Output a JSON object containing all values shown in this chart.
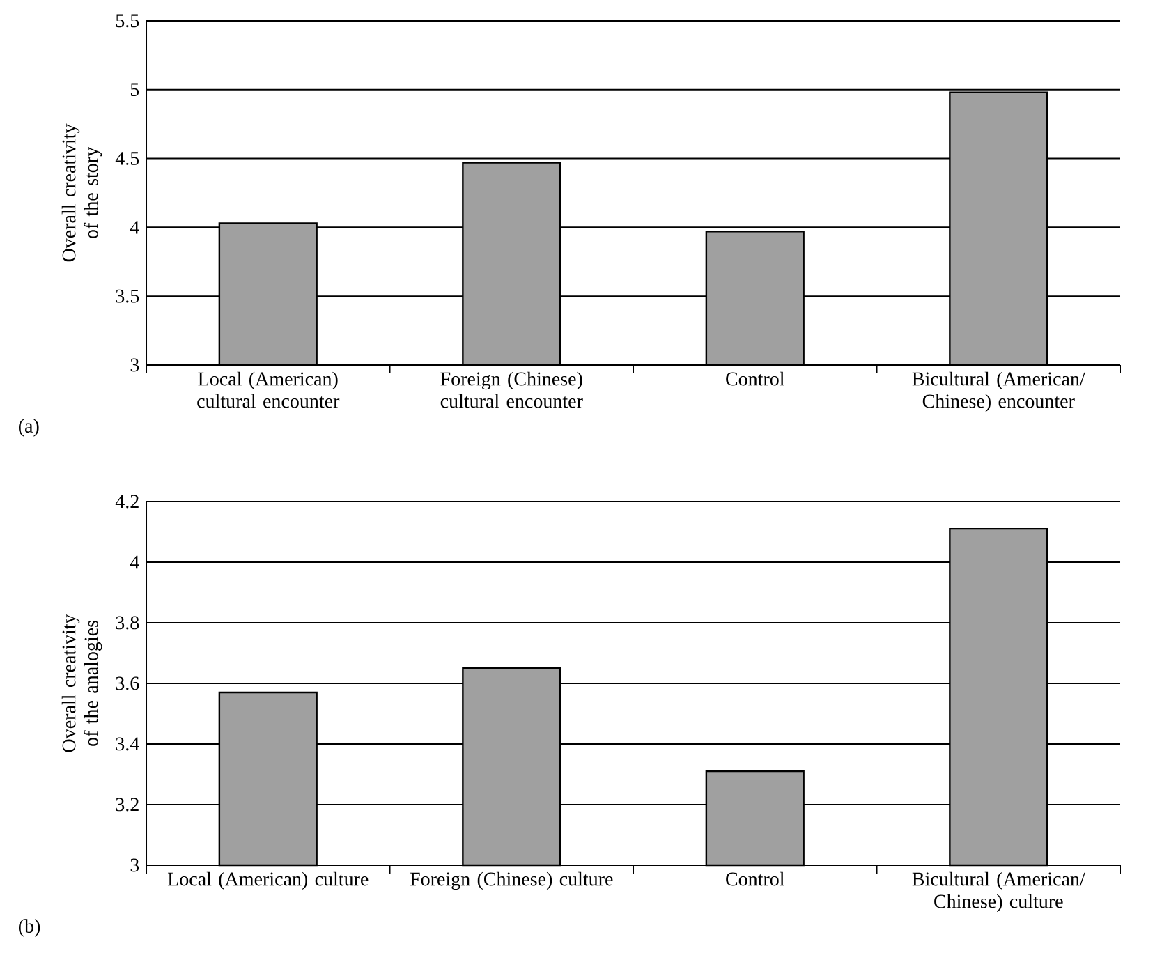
{
  "chart_data": [
    {
      "type": "bar",
      "ylabel": "Overall creativity of the story",
      "categories": [
        "Local (American) cultural encounter",
        "Foreign (Chinese) cultural encounter",
        "Control",
        "Bicultural (American/ Chinese) encounter"
      ],
      "values": [
        4.03,
        4.47,
        3.97,
        4.98
      ],
      "color": "#a0a0a0",
      "ylim": [
        3,
        5.5
      ],
      "yticks": [
        3,
        3.5,
        4,
        4.5,
        5,
        5.5
      ],
      "grid": "y",
      "annotations": [
        "(a)"
      ]
    },
    {
      "type": "bar",
      "ylabel": "Overall creativity of the analogies",
      "categories": [
        "Local (American) culture",
        "Foreign (Chinese) culture",
        "Control",
        "Bicultural (American/ Chinese) culture"
      ],
      "values": [
        3.57,
        3.65,
        3.31,
        4.11
      ],
      "color": "#a0a0a0",
      "ylim": [
        3,
        4.2
      ],
      "yticks": [
        3,
        3.2,
        3.4,
        3.6,
        3.8,
        4,
        4.2
      ],
      "grid": "y",
      "annotations": [
        "(b)"
      ]
    }
  ]
}
